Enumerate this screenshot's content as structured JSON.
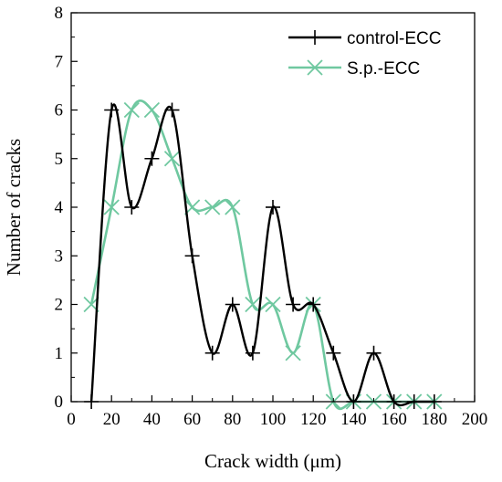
{
  "chart_data": {
    "type": "line",
    "xlabel": "Crack width (μm)",
    "ylabel": "Number of cracks",
    "xlim": [
      0,
      200
    ],
    "ylim": [
      0,
      8
    ],
    "xticks": [
      "0",
      "20",
      "40",
      "60",
      "80",
      "100",
      "120",
      "140",
      "160",
      "180",
      "200"
    ],
    "yticks": [
      "0",
      "1",
      "2",
      "3",
      "4",
      "5",
      "6",
      "7",
      "8"
    ],
    "legend_position": "top-right",
    "grid": false,
    "series": [
      {
        "name": "control-ECC",
        "color": "#000000",
        "marker": "plus",
        "x": [
          10,
          20,
          30,
          40,
          50,
          60,
          70,
          80,
          90,
          100,
          110,
          120,
          130,
          140,
          150,
          160,
          170,
          180
        ],
        "values": [
          0,
          6,
          4,
          5,
          6,
          3,
          1,
          2,
          1,
          4,
          2,
          2,
          1,
          0,
          1,
          0,
          0,
          0
        ]
      },
      {
        "name": "S.p.-ECC",
        "color": "#6fc8a0",
        "marker": "x",
        "x": [
          10,
          20,
          30,
          40,
          50,
          60,
          70,
          80,
          90,
          100,
          110,
          120,
          130,
          140,
          150,
          160,
          170,
          180
        ],
        "values": [
          2,
          4,
          6,
          6,
          5,
          4,
          4,
          4,
          2,
          2,
          1,
          2,
          0,
          0,
          0,
          0,
          0,
          0
        ]
      }
    ]
  }
}
